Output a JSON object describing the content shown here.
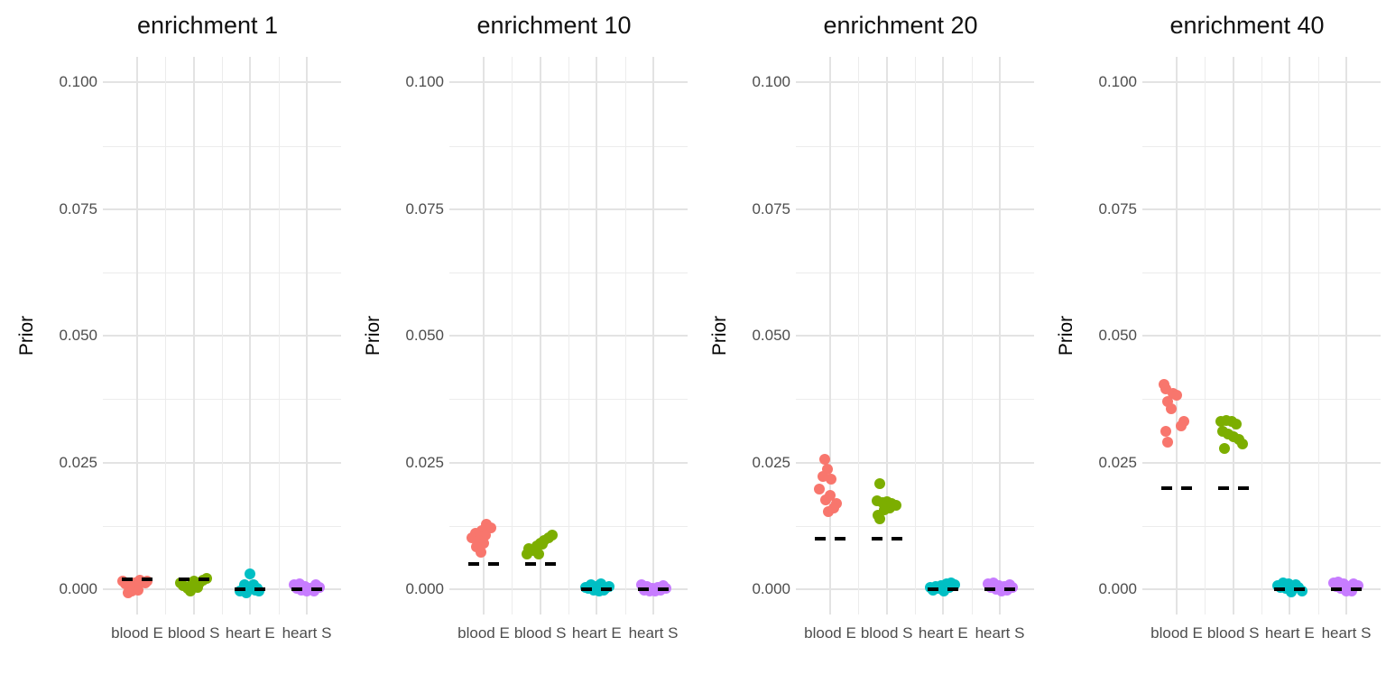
{
  "figure": {
    "background": "#ffffff",
    "y_axis_title": "Prior",
    "y_tick_labels": [
      "0.100",
      "0.075",
      "0.050",
      "0.025",
      "0.000"
    ],
    "x_category_labels": [
      "blood E",
      "blood S",
      "heart E",
      "heart S"
    ],
    "palette": {
      "blood E": "#F8766D",
      "blood S": "#7CAE00",
      "heart E": "#00BFC4",
      "heart S": "#C77CFF"
    },
    "gridline_major_color": "#e3e3e3",
    "gridline_minor_color": "#ececec",
    "dashed_line_color": "#000000",
    "tick_label_color": "#4d4d4d",
    "title_color": "#111111"
  },
  "chart_data": [
    {
      "type": "scatter",
      "title": "enrichment 1",
      "ylabel": "Prior",
      "ylim": [
        0,
        0.1
      ],
      "y_ticks": [
        0,
        0.025,
        0.05,
        0.075,
        0.1
      ],
      "y_minor_ticks": [
        0.0125,
        0.0375,
        0.0625,
        0.0875
      ],
      "categories": [
        "blood E",
        "blood S",
        "heart E",
        "heart S"
      ],
      "expected_dashed_values": [
        0.002,
        0.002,
        0.0,
        0.0
      ],
      "series": [
        {
          "name": "blood E",
          "color": "#F8766D",
          "points": [
            [
              -13,
              0.001
            ],
            [
              -8,
              0.0004
            ],
            [
              -3,
              0.0013
            ],
            [
              -16,
              0.0016
            ],
            [
              3,
              0.0017
            ],
            [
              9,
              0.0012
            ],
            [
              -6,
              -0.0004
            ],
            [
              1,
              -0.0001
            ],
            [
              -10,
              -0.0007
            ],
            [
              11,
              0.0016
            ]
          ]
        },
        {
          "name": "blood S",
          "color": "#7CAE00",
          "points": [
            [
              -12,
              0.0008
            ],
            [
              -15,
              0.0013
            ],
            [
              -7,
              0.0002
            ],
            [
              -2,
              0.001
            ],
            [
              4,
              0.0004
            ],
            [
              14,
              0.0021
            ],
            [
              10,
              0.0017
            ],
            [
              6,
              0.0012
            ],
            [
              -4,
              -0.0003
            ],
            [
              0,
              0.0016
            ]
          ]
        },
        {
          "name": "heart E",
          "color": "#00BFC4",
          "points": [
            [
              0,
              0.003
            ],
            [
              -6,
              0.0009
            ],
            [
              2,
              0.0006
            ],
            [
              -2,
              0.0001
            ],
            [
              6,
              -0.0002
            ],
            [
              -11,
              -0.0004
            ],
            [
              10,
              -0.0004
            ],
            [
              4,
              0.0009
            ],
            [
              -4,
              -0.0007
            ],
            [
              8,
              0.0001
            ]
          ]
        },
        {
          "name": "heart S",
          "color": "#C77CFF",
          "points": [
            [
              -14,
              0.0009
            ],
            [
              -8,
              0.0011
            ],
            [
              -2,
              0.0006
            ],
            [
              4,
              0.0001
            ],
            [
              10,
              0.0009
            ],
            [
              14,
              0.0004
            ],
            [
              0,
              -0.0003
            ],
            [
              -6,
              -0.0001
            ],
            [
              8,
              -0.0004
            ],
            [
              -11,
              0.0001
            ]
          ]
        }
      ]
    },
    {
      "type": "scatter",
      "title": "enrichment 10",
      "ylabel": "Prior",
      "ylim": [
        0,
        0.1
      ],
      "y_ticks": [
        0,
        0.025,
        0.05,
        0.075,
        0.1
      ],
      "y_minor_ticks": [
        0.0125,
        0.0375,
        0.0625,
        0.0875
      ],
      "categories": [
        "blood E",
        "blood S",
        "heart E",
        "heart S"
      ],
      "expected_dashed_values": [
        0.005,
        0.005,
        0.0,
        0.0
      ],
      "series": [
        {
          "name": "blood E",
          "color": "#F8766D",
          "points": [
            [
              3,
              0.0128
            ],
            [
              8,
              0.0121
            ],
            [
              -2,
              0.0116
            ],
            [
              -9,
              0.0111
            ],
            [
              2,
              0.0106
            ],
            [
              -13,
              0.0101
            ],
            [
              -5,
              0.0097
            ],
            [
              0,
              0.0091
            ],
            [
              -8,
              0.0083
            ],
            [
              -3,
              0.0073
            ]
          ]
        },
        {
          "name": "blood S",
          "color": "#7CAE00",
          "points": [
            [
              -13,
              0.008
            ],
            [
              -8,
              0.0076
            ],
            [
              -15,
              0.007
            ],
            [
              -4,
              0.0086
            ],
            [
              0,
              0.0091
            ],
            [
              4,
              0.0096
            ],
            [
              9,
              0.0101
            ],
            [
              13,
              0.0106
            ],
            [
              2,
              0.0089
            ],
            [
              -2,
              0.0069
            ]
          ]
        },
        {
          "name": "heart E",
          "color": "#00BFC4",
          "points": [
            [
              -12,
              0.0004
            ],
            [
              -6,
              0.0009
            ],
            [
              0,
              0.0006
            ],
            [
              5,
              0.0011
            ],
            [
              10,
              0.0001
            ],
            [
              14,
              0.0006
            ],
            [
              -3,
              -0.0002
            ],
            [
              3,
              -0.0004
            ],
            [
              -9,
              0.0001
            ],
            [
              8,
              -0.0001
            ]
          ]
        },
        {
          "name": "heart S",
          "color": "#C77CFF",
          "points": [
            [
              -13,
              0.0009
            ],
            [
              -7,
              0.0006
            ],
            [
              -1,
              0.0001
            ],
            [
              5,
              0.0004
            ],
            [
              11,
              0.0007
            ],
            [
              14,
              0.0001
            ],
            [
              -4,
              -0.0003
            ],
            [
              2,
              -0.0004
            ],
            [
              8,
              -0.0002
            ],
            [
              -10,
              -0.0001
            ]
          ]
        }
      ]
    },
    {
      "type": "scatter",
      "title": "enrichment 20",
      "ylabel": "Prior",
      "ylim": [
        0,
        0.1
      ],
      "y_ticks": [
        0,
        0.025,
        0.05,
        0.075,
        0.1
      ],
      "y_minor_ticks": [
        0.0125,
        0.0375,
        0.0625,
        0.0875
      ],
      "categories": [
        "blood E",
        "blood S",
        "heart E",
        "heart S"
      ],
      "expected_dashed_values": [
        0.01,
        0.01,
        0.0,
        0.0
      ],
      "series": [
        {
          "name": "blood E",
          "color": "#F8766D",
          "points": [
            [
              -6,
              0.0257
            ],
            [
              -3,
              0.0236
            ],
            [
              -8,
              0.0222
            ],
            [
              1,
              0.0218
            ],
            [
              -12,
              0.0197
            ],
            [
              0,
              0.0186
            ],
            [
              -5,
              0.0177
            ],
            [
              7,
              0.017
            ],
            [
              4,
              0.0161
            ],
            [
              -2,
              0.0154
            ]
          ]
        },
        {
          "name": "blood S",
          "color": "#7CAE00",
          "points": [
            [
              -8,
              0.0209
            ],
            [
              -11,
              0.0175
            ],
            [
              -5,
              0.0171
            ],
            [
              0,
              0.0173
            ],
            [
              5,
              0.0169
            ],
            [
              10,
              0.0166
            ],
            [
              3,
              0.0161
            ],
            [
              -3,
              0.0156
            ],
            [
              -10,
              0.0146
            ],
            [
              -8,
              0.0139
            ]
          ]
        },
        {
          "name": "heart E",
          "color": "#00BFC4",
          "points": [
            [
              -14,
              0.0003
            ],
            [
              -8,
              0.0005
            ],
            [
              -2,
              0.0008
            ],
            [
              4,
              0.001
            ],
            [
              9,
              0.0012
            ],
            [
              13,
              0.0009
            ],
            [
              -5,
              0.0001
            ],
            [
              1,
              -0.0003
            ],
            [
              7,
              0.0004
            ],
            [
              -11,
              -0.0002
            ]
          ]
        },
        {
          "name": "heart S",
          "color": "#C77CFF",
          "points": [
            [
              -13,
              0.001
            ],
            [
              -7,
              0.0013
            ],
            [
              -1,
              0.0008
            ],
            [
              5,
              0.0005
            ],
            [
              11,
              0.0009
            ],
            [
              14,
              0.0004
            ],
            [
              -4,
              0.0
            ],
            [
              2,
              -0.0003
            ],
            [
              8,
              -0.0002
            ],
            [
              -10,
              0.0004
            ]
          ]
        }
      ]
    },
    {
      "type": "scatter",
      "title": "enrichment 40",
      "ylabel": "Prior",
      "ylim": [
        0,
        0.1
      ],
      "y_ticks": [
        0,
        0.025,
        0.05,
        0.075,
        0.1
      ],
      "y_minor_ticks": [
        0.0125,
        0.0375,
        0.0625,
        0.0875
      ],
      "categories": [
        "blood E",
        "blood S",
        "heart E",
        "heart S"
      ],
      "expected_dashed_values": [
        0.02,
        0.02,
        0.0,
        0.0
      ],
      "series": [
        {
          "name": "blood E",
          "color": "#F8766D",
          "points": [
            [
              -14,
              0.0404
            ],
            [
              -12,
              0.0396
            ],
            [
              -4,
              0.0386
            ],
            [
              0,
              0.0382
            ],
            [
              -10,
              0.0371
            ],
            [
              -6,
              0.0356
            ],
            [
              8,
              0.0331
            ],
            [
              5,
              0.0322
            ],
            [
              -12,
              0.0312
            ],
            [
              -10,
              0.029
            ]
          ]
        },
        {
          "name": "blood S",
          "color": "#7CAE00",
          "points": [
            [
              -14,
              0.0331
            ],
            [
              -8,
              0.0333
            ],
            [
              -2,
              0.0331
            ],
            [
              3,
              0.0325
            ],
            [
              -12,
              0.0311
            ],
            [
              -6,
              0.0306
            ],
            [
              0,
              0.0301
            ],
            [
              6,
              0.0296
            ],
            [
              10,
              0.0286
            ],
            [
              -10,
              0.0278
            ]
          ]
        },
        {
          "name": "heart E",
          "color": "#00BFC4",
          "points": [
            [
              -13,
              0.0008
            ],
            [
              -7,
              0.0012
            ],
            [
              -1,
              0.001
            ],
            [
              5,
              0.0005
            ],
            [
              10,
              0.0003
            ],
            [
              14,
              -0.0003
            ],
            [
              -4,
              0.0001
            ],
            [
              2,
              -0.0005
            ],
            [
              -10,
              0.0004
            ],
            [
              7,
              0.0009
            ]
          ]
        },
        {
          "name": "heart S",
          "color": "#C77CFF",
          "points": [
            [
              -14,
              0.0012
            ],
            [
              -9,
              0.0015
            ],
            [
              -3,
              0.001
            ],
            [
              2,
              0.0005
            ],
            [
              8,
              0.001
            ],
            [
              13,
              0.0008
            ],
            [
              -6,
              0.0001
            ],
            [
              0,
              -0.0004
            ],
            [
              6,
              -0.0003
            ],
            [
              -11,
              0.0005
            ]
          ]
        }
      ]
    }
  ]
}
